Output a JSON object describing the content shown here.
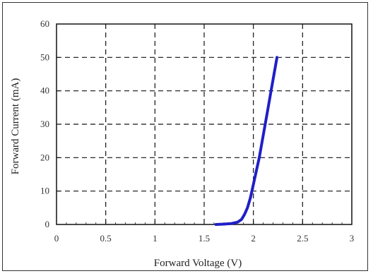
{
  "chart_data": {
    "type": "line",
    "title": "",
    "xlabel": "Forward Voltage (V)",
    "ylabel": "Forward Current (mA)",
    "xlim": [
      0,
      3
    ],
    "ylim": [
      0,
      60
    ],
    "x_ticks": [
      "0",
      "0.5",
      "1",
      "1.5",
      "2",
      "2.5",
      "3"
    ],
    "y_ticks": [
      "0",
      "10",
      "20",
      "30",
      "40",
      "50",
      "60"
    ],
    "grid": true,
    "grid_style": "dashed",
    "series": [
      {
        "color": "#1f1fc8",
        "x": [
          1.62,
          1.7,
          1.78,
          1.84,
          1.88,
          1.91,
          1.94,
          1.97,
          2.0,
          2.03,
          2.06,
          2.09,
          2.12,
          2.15,
          2.18,
          2.21,
          2.24
        ],
        "y": [
          0.0,
          0.1,
          0.3,
          0.7,
          1.5,
          3.0,
          5.0,
          8.0,
          12.0,
          16.0,
          20.0,
          25.0,
          30.0,
          35.0,
          40.0,
          45.0,
          50.0
        ]
      }
    ]
  }
}
